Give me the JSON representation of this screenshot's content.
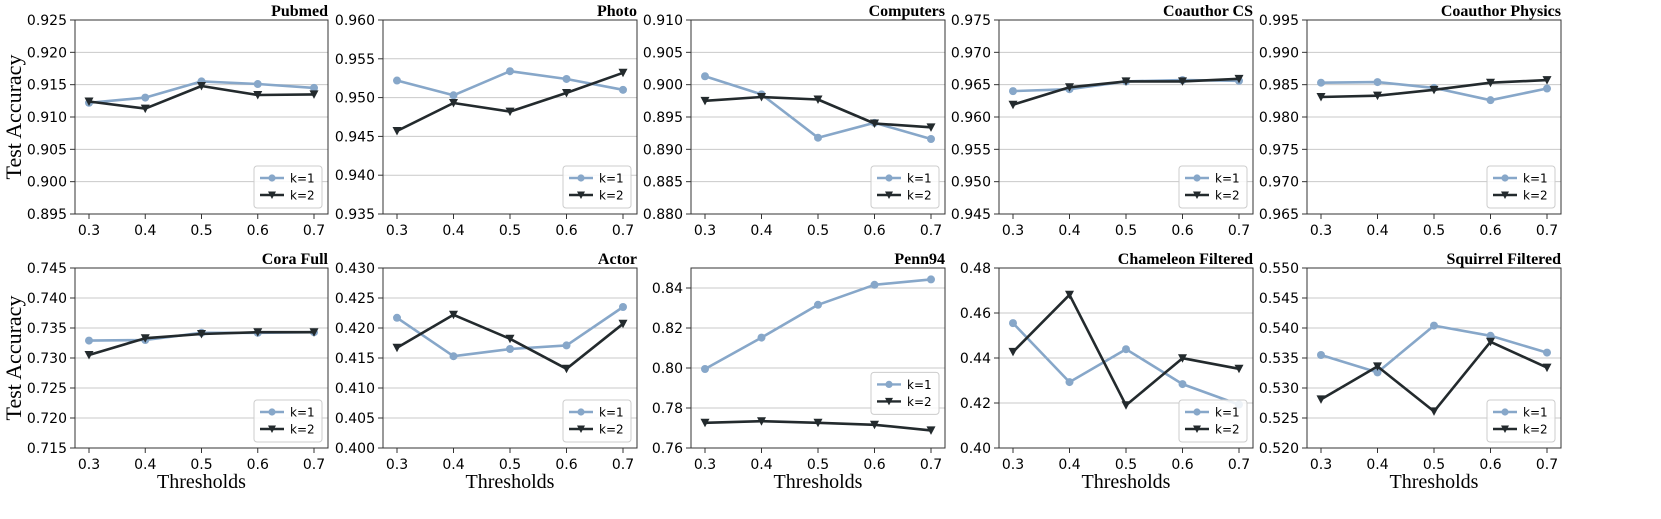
{
  "colors": {
    "k1": "#87a7c9",
    "k2": "#232a2d",
    "grid": "#c9c9c9",
    "axis": "#333333"
  },
  "legend_labels": [
    "k=1",
    "k=2"
  ],
  "shared_ylabel": "Test Accuracy",
  "shared_xlabel": "Thresholds",
  "chart_data": [
    {
      "type": "line",
      "title": "Pubmed",
      "x": [
        0.3,
        0.4,
        0.5,
        0.6,
        0.7
      ],
      "xticks": [
        "0.3",
        "0.4",
        "0.5",
        "0.6",
        "0.7"
      ],
      "ylim": [
        0.895,
        0.925
      ],
      "yticks": [
        "0.895",
        "0.900",
        "0.905",
        "0.910",
        "0.915",
        "0.920",
        "0.925"
      ],
      "series": [
        {
          "name": "k=1",
          "values": [
            0.9122,
            0.913,
            0.9155,
            0.9151,
            0.9145
          ]
        },
        {
          "name": "k=2",
          "values": [
            0.9124,
            0.9113,
            0.9148,
            0.9134,
            0.9135
          ]
        }
      ],
      "legend": "lower-right",
      "xlabel": "",
      "ylabel": "Test Accuracy"
    },
    {
      "type": "line",
      "title": "Photo",
      "x": [
        0.3,
        0.4,
        0.5,
        0.6,
        0.7
      ],
      "xticks": [
        "0.3",
        "0.4",
        "0.5",
        "0.6",
        "0.7"
      ],
      "ylim": [
        0.935,
        0.96
      ],
      "yticks": [
        "0.935",
        "0.940",
        "0.945",
        "0.950",
        "0.955",
        "0.960"
      ],
      "series": [
        {
          "name": "k=1",
          "values": [
            0.9522,
            0.9503,
            0.9534,
            0.9524,
            0.951
          ]
        },
        {
          "name": "k=2",
          "values": [
            0.9457,
            0.9493,
            0.9482,
            0.9506,
            0.9532
          ]
        }
      ],
      "legend": "lower-right",
      "xlabel": "",
      "ylabel": ""
    },
    {
      "type": "line",
      "title": "Computers",
      "x": [
        0.3,
        0.4,
        0.5,
        0.6,
        0.7
      ],
      "xticks": [
        "0.3",
        "0.4",
        "0.5",
        "0.6",
        "0.7"
      ],
      "ylim": [
        0.88,
        0.91
      ],
      "yticks": [
        "0.880",
        "0.885",
        "0.890",
        "0.895",
        "0.900",
        "0.905",
        "0.910"
      ],
      "series": [
        {
          "name": "k=1",
          "values": [
            0.9013,
            0.8985,
            0.8918,
            0.8941,
            0.8916
          ]
        },
        {
          "name": "k=2",
          "values": [
            0.8975,
            0.8981,
            0.8977,
            0.894,
            0.8934
          ]
        }
      ],
      "legend": "lower-right",
      "xlabel": "",
      "ylabel": ""
    },
    {
      "type": "line",
      "title": "Coauthor CS",
      "x": [
        0.3,
        0.4,
        0.5,
        0.6,
        0.7
      ],
      "xticks": [
        "0.3",
        "0.4",
        "0.5",
        "0.6",
        "0.7"
      ],
      "ylim": [
        0.945,
        0.975
      ],
      "yticks": [
        "0.945",
        "0.950",
        "0.955",
        "0.960",
        "0.965",
        "0.970",
        "0.975"
      ],
      "series": [
        {
          "name": "k=1",
          "values": [
            0.964,
            0.9643,
            0.9655,
            0.9657,
            0.9656
          ]
        },
        {
          "name": "k=2",
          "values": [
            0.9619,
            0.9646,
            0.9655,
            0.9655,
            0.9659
          ]
        }
      ],
      "legend": "lower-right",
      "xlabel": "",
      "ylabel": ""
    },
    {
      "type": "line",
      "title": "Coauthor Physics",
      "x": [
        0.3,
        0.4,
        0.5,
        0.6,
        0.7
      ],
      "xticks": [
        "0.3",
        "0.4",
        "0.5",
        "0.6",
        "0.7"
      ],
      "ylim": [
        0.965,
        0.995
      ],
      "yticks": [
        "0.965",
        "0.970",
        "0.975",
        "0.980",
        "0.985",
        "0.990",
        "0.995"
      ],
      "series": [
        {
          "name": "k=1",
          "values": [
            0.9853,
            0.9854,
            0.9845,
            0.9826,
            0.9844
          ]
        },
        {
          "name": "k=2",
          "values": [
            0.9831,
            0.9833,
            0.9842,
            0.9853,
            0.9857
          ]
        }
      ],
      "legend": "lower-right",
      "xlabel": "",
      "ylabel": ""
    },
    {
      "type": "line",
      "title": "Cora Full",
      "x": [
        0.3,
        0.4,
        0.5,
        0.6,
        0.7
      ],
      "xticks": [
        "0.3",
        "0.4",
        "0.5",
        "0.6",
        "0.7"
      ],
      "ylim": [
        0.715,
        0.745
      ],
      "yticks": [
        "0.715",
        "0.720",
        "0.725",
        "0.730",
        "0.735",
        "0.740",
        "0.745"
      ],
      "series": [
        {
          "name": "k=1",
          "values": [
            0.7329,
            0.733,
            0.7342,
            0.7342,
            0.7343
          ]
        },
        {
          "name": "k=2",
          "values": [
            0.7305,
            0.7333,
            0.734,
            0.7343,
            0.7343
          ]
        }
      ],
      "legend": "lower-right",
      "xlabel": "Thresholds",
      "ylabel": "Test Accuracy"
    },
    {
      "type": "line",
      "title": "Actor",
      "x": [
        0.3,
        0.4,
        0.5,
        0.6,
        0.7
      ],
      "xticks": [
        "0.3",
        "0.4",
        "0.5",
        "0.6",
        "0.7"
      ],
      "ylim": [
        0.4,
        0.43
      ],
      "yticks": [
        "0.400",
        "0.405",
        "0.410",
        "0.415",
        "0.420",
        "0.425",
        "0.430"
      ],
      "series": [
        {
          "name": "k=1",
          "values": [
            0.4217,
            0.4153,
            0.4165,
            0.4171,
            0.4235
          ]
        },
        {
          "name": "k=2",
          "values": [
            0.4167,
            0.4222,
            0.4182,
            0.4132,
            0.4207
          ]
        }
      ],
      "legend": "lower-right",
      "xlabel": "Thresholds",
      "ylabel": ""
    },
    {
      "type": "line",
      "title": "Penn94",
      "x": [
        0.3,
        0.4,
        0.5,
        0.6,
        0.7
      ],
      "xticks": [
        "0.3",
        "0.4",
        "0.5",
        "0.6",
        "0.7"
      ],
      "ylim": [
        0.76,
        0.85
      ],
      "yticks": [
        "0.76",
        "0.78",
        "0.80",
        "0.82",
        "0.84"
      ],
      "series": [
        {
          "name": "k=1",
          "values": [
            0.7995,
            0.8152,
            0.8316,
            0.8416,
            0.8443
          ]
        },
        {
          "name": "k=2",
          "values": [
            0.7726,
            0.7734,
            0.7726,
            0.7716,
            0.7688
          ]
        }
      ],
      "legend": "center-right",
      "xlabel": "Thresholds",
      "ylabel": ""
    },
    {
      "type": "line",
      "title": "Chameleon Filtered",
      "x": [
        0.3,
        0.4,
        0.5,
        0.6,
        0.7
      ],
      "xticks": [
        "0.3",
        "0.4",
        "0.5",
        "0.6",
        "0.7"
      ],
      "ylim": [
        0.4,
        0.48
      ],
      "yticks": [
        "0.40",
        "0.42",
        "0.44",
        "0.46",
        "0.48"
      ],
      "series": [
        {
          "name": "k=1",
          "values": [
            0.4555,
            0.4293,
            0.4439,
            0.4284,
            0.4193
          ]
        },
        {
          "name": "k=2",
          "values": [
            0.4427,
            0.4681,
            0.419,
            0.4399,
            0.4352
          ]
        }
      ],
      "legend": "lower-right",
      "xlabel": "Thresholds",
      "ylabel": ""
    },
    {
      "type": "line",
      "title": "Squirrel Filtered",
      "x": [
        0.3,
        0.4,
        0.5,
        0.6,
        0.7
      ],
      "xticks": [
        "0.3",
        "0.4",
        "0.5",
        "0.6",
        "0.7"
      ],
      "ylim": [
        0.52,
        0.55
      ],
      "yticks": [
        "0.520",
        "0.525",
        "0.530",
        "0.535",
        "0.540",
        "0.545",
        "0.550"
      ],
      "series": [
        {
          "name": "k=1",
          "values": [
            0.5355,
            0.5326,
            0.5404,
            0.5387,
            0.5359
          ]
        },
        {
          "name": "k=2",
          "values": [
            0.5281,
            0.5336,
            0.5261,
            0.5377,
            0.5334
          ]
        }
      ],
      "legend": "lower-right",
      "xlabel": "Thresholds",
      "ylabel": ""
    }
  ]
}
